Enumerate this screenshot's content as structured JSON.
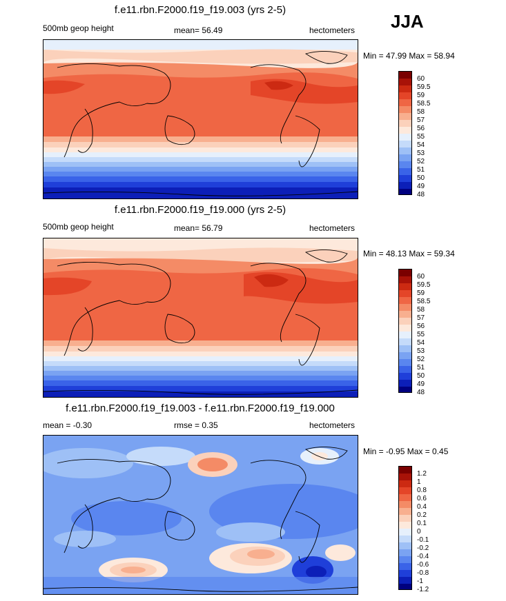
{
  "season": "JJA",
  "colors": {
    "height": [
      "#00007f",
      "#0c1fb8",
      "#1f3fd9",
      "#3a63e8",
      "#5a86ef",
      "#7aa3f2",
      "#9ec0f6",
      "#c5dbfa",
      "#e6f0fc",
      "#fde9dc",
      "#fbd1bb",
      "#f8af8f",
      "#f48b66",
      "#ef6644",
      "#e44528",
      "#cc2a12",
      "#a81208",
      "#7a0000"
    ],
    "diff": [
      "#00007f",
      "#0c1fb8",
      "#1f3fd9",
      "#3a63e8",
      "#5a86ef",
      "#7aa3f2",
      "#9ec0f6",
      "#c5dbfa",
      "#e6f0fc",
      "#fde9dc",
      "#fbd1bb",
      "#f8af8f",
      "#f48b66",
      "#ef6644",
      "#e44528",
      "#cc2a12",
      "#a81208",
      "#7a0000"
    ]
  },
  "panels": [
    {
      "title": "f.e11.rbn.F2000.f19_f19.003 (yrs 2-5)",
      "left_label": "500mb geop height",
      "center_label": "mean=  56.49",
      "right_label": "hectometers",
      "minmax": "Min =  47.99 Max =  58.94",
      "colorbar_labels": [
        "60",
        "59.5",
        "59",
        "58.5",
        "58",
        "57",
        "56",
        "55",
        "54",
        "53",
        "52",
        "51",
        "50",
        "49",
        "48"
      ]
    },
    {
      "title": "f.e11.rbn.F2000.f19_f19.000 (yrs 2-5)",
      "left_label": "500mb geop height",
      "center_label": "mean=  56.79",
      "right_label": "hectometers",
      "minmax": "Min =  48.13 Max =  59.34",
      "colorbar_labels": [
        "60",
        "59.5",
        "59",
        "58.5",
        "58",
        "57",
        "56",
        "55",
        "54",
        "53",
        "52",
        "51",
        "50",
        "49",
        "48"
      ]
    },
    {
      "title": "f.e11.rbn.F2000.f19_f19.003 - f.e11.rbn.F2000.f19_f19.000",
      "left_label": "mean =  -0.30",
      "center_label": "rmse =   0.35",
      "right_label": "hectometers",
      "minmax": "Min =  -0.95 Max =   0.45",
      "colorbar_labels": [
        "1.2",
        "1",
        "0.8",
        "0.6",
        "0.4",
        "0.2",
        "0.1",
        "0",
        "-0.1",
        "-0.2",
        "-0.4",
        "-0.6",
        "-0.8",
        "-1",
        "-1.2"
      ]
    }
  ]
}
